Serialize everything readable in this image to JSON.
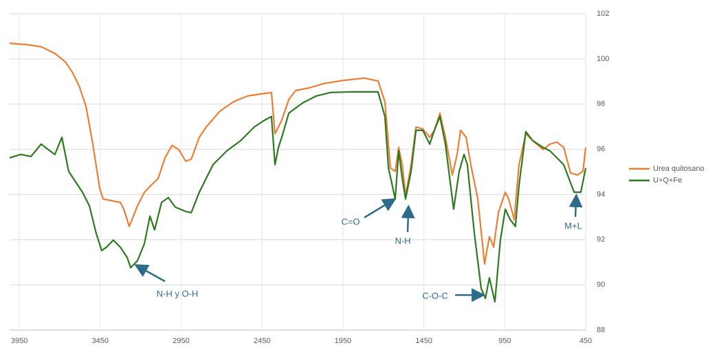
{
  "chart_data": {
    "type": "line",
    "xlim": [
      4010,
      450
    ],
    "xticks": [
      3950,
      3450,
      2950,
      2450,
      1950,
      1450,
      950,
      450
    ],
    "ylim": [
      88,
      102
    ],
    "yticks": [
      88,
      90,
      92,
      94,
      96,
      98,
      100,
      102
    ],
    "grid": true,
    "legend": "right",
    "annotations": [
      "N-H y O-H",
      "C=O",
      "N-H",
      "C-O-C",
      "M+L"
    ],
    "series": [
      {
        "name": "Urea quitosano",
        "color": "#ed7d31",
        "x": [
          4010,
          3900,
          3815,
          3730,
          3666,
          3623,
          3581,
          3538,
          3496,
          3453,
          3432,
          3390,
          3326,
          3305,
          3271,
          3254,
          3220,
          3177,
          3135,
          3092,
          3050,
          3007,
          2965,
          2922,
          2888,
          2838,
          2795,
          2710,
          2625,
          2540,
          2455,
          2392,
          2370,
          2349,
          2328,
          2285,
          2243,
          2158,
          2073,
          1945,
          1818,
          1733,
          1691,
          1657,
          1627,
          1606,
          1584,
          1563,
          1529,
          1499,
          1457,
          1414,
          1385,
          1351,
          1317,
          1274,
          1245,
          1223,
          1189,
          1160,
          1117,
          1075,
          1045,
          1019,
          990,
          947,
          926,
          892,
          862,
          820,
          777,
          713,
          671,
          629,
          586,
          544,
          501,
          467,
          450
        ],
        "values": [
          100.69,
          100.63,
          100.54,
          100.24,
          99.87,
          99.42,
          98.81,
          97.9,
          96.23,
          94.26,
          93.8,
          93.74,
          93.65,
          93.35,
          92.59,
          92.89,
          93.5,
          94.1,
          94.41,
          94.71,
          95.62,
          96.17,
          95.99,
          95.47,
          95.56,
          96.53,
          96.99,
          97.69,
          98.11,
          98.36,
          98.45,
          98.51,
          96.69,
          96.99,
          97.29,
          98.2,
          98.6,
          98.72,
          98.9,
          99.05,
          99.15,
          99.02,
          98.11,
          95.17,
          95.02,
          96.08,
          95.32,
          93.95,
          95.32,
          96.99,
          96.9,
          96.53,
          96.84,
          97.6,
          96.53,
          94.86,
          95.77,
          96.84,
          96.53,
          95.32,
          93.8,
          90.92,
          92.13,
          91.67,
          93.19,
          94.1,
          93.8,
          92.89,
          95.32,
          96.69,
          96.38,
          95.99,
          96.23,
          96.32,
          96.08,
          94.95,
          94.86,
          95.02,
          96.08
        ]
      },
      {
        "name": "U+Q+Fe",
        "color": "#2b7a1e",
        "x": [
          4010,
          3942,
          3878,
          3815,
          3772,
          3730,
          3687,
          3645,
          3602,
          3560,
          3517,
          3475,
          3441,
          3411,
          3369,
          3326,
          3284,
          3262,
          3220,
          3177,
          3143,
          3114,
          3071,
          3029,
          2986,
          2922,
          2888,
          2838,
          2753,
          2668,
          2583,
          2498,
          2434,
          2392,
          2370,
          2349,
          2328,
          2285,
          2200,
          2115,
          2030,
          1903,
          1733,
          1691,
          1669,
          1627,
          1606,
          1584,
          1563,
          1529,
          1499,
          1457,
          1414,
          1385,
          1351,
          1317,
          1266,
          1232,
          1202,
          1181,
          1138,
          1096,
          1070,
          1045,
          1011,
          977,
          947,
          917,
          884,
          862,
          820,
          777,
          713,
          671,
          586,
          522,
          480,
          450
        ],
        "values": [
          95.62,
          95.77,
          95.68,
          96.23,
          95.99,
          95.77,
          96.53,
          95.02,
          94.56,
          94.1,
          93.5,
          92.28,
          91.52,
          91.67,
          91.98,
          91.67,
          91.22,
          90.76,
          91.07,
          91.83,
          93.04,
          92.43,
          93.65,
          93.86,
          93.44,
          93.25,
          93.19,
          94.1,
          95.32,
          95.93,
          96.38,
          96.99,
          97.29,
          97.45,
          95.32,
          96.08,
          96.53,
          97.6,
          98.05,
          98.36,
          98.51,
          98.54,
          98.54,
          97.45,
          95.17,
          93.8,
          95.93,
          94.71,
          93.8,
          95.02,
          96.84,
          96.84,
          96.23,
          96.84,
          97.45,
          96.23,
          93.35,
          95.02,
          95.77,
          95.32,
          92.28,
          89.85,
          89.4,
          90.31,
          89.25,
          91.98,
          93.35,
          92.89,
          92.59,
          94.41,
          96.78,
          96.38,
          96.08,
          95.93,
          95.32,
          94.1,
          94.1,
          95.17
        ]
      }
    ]
  }
}
